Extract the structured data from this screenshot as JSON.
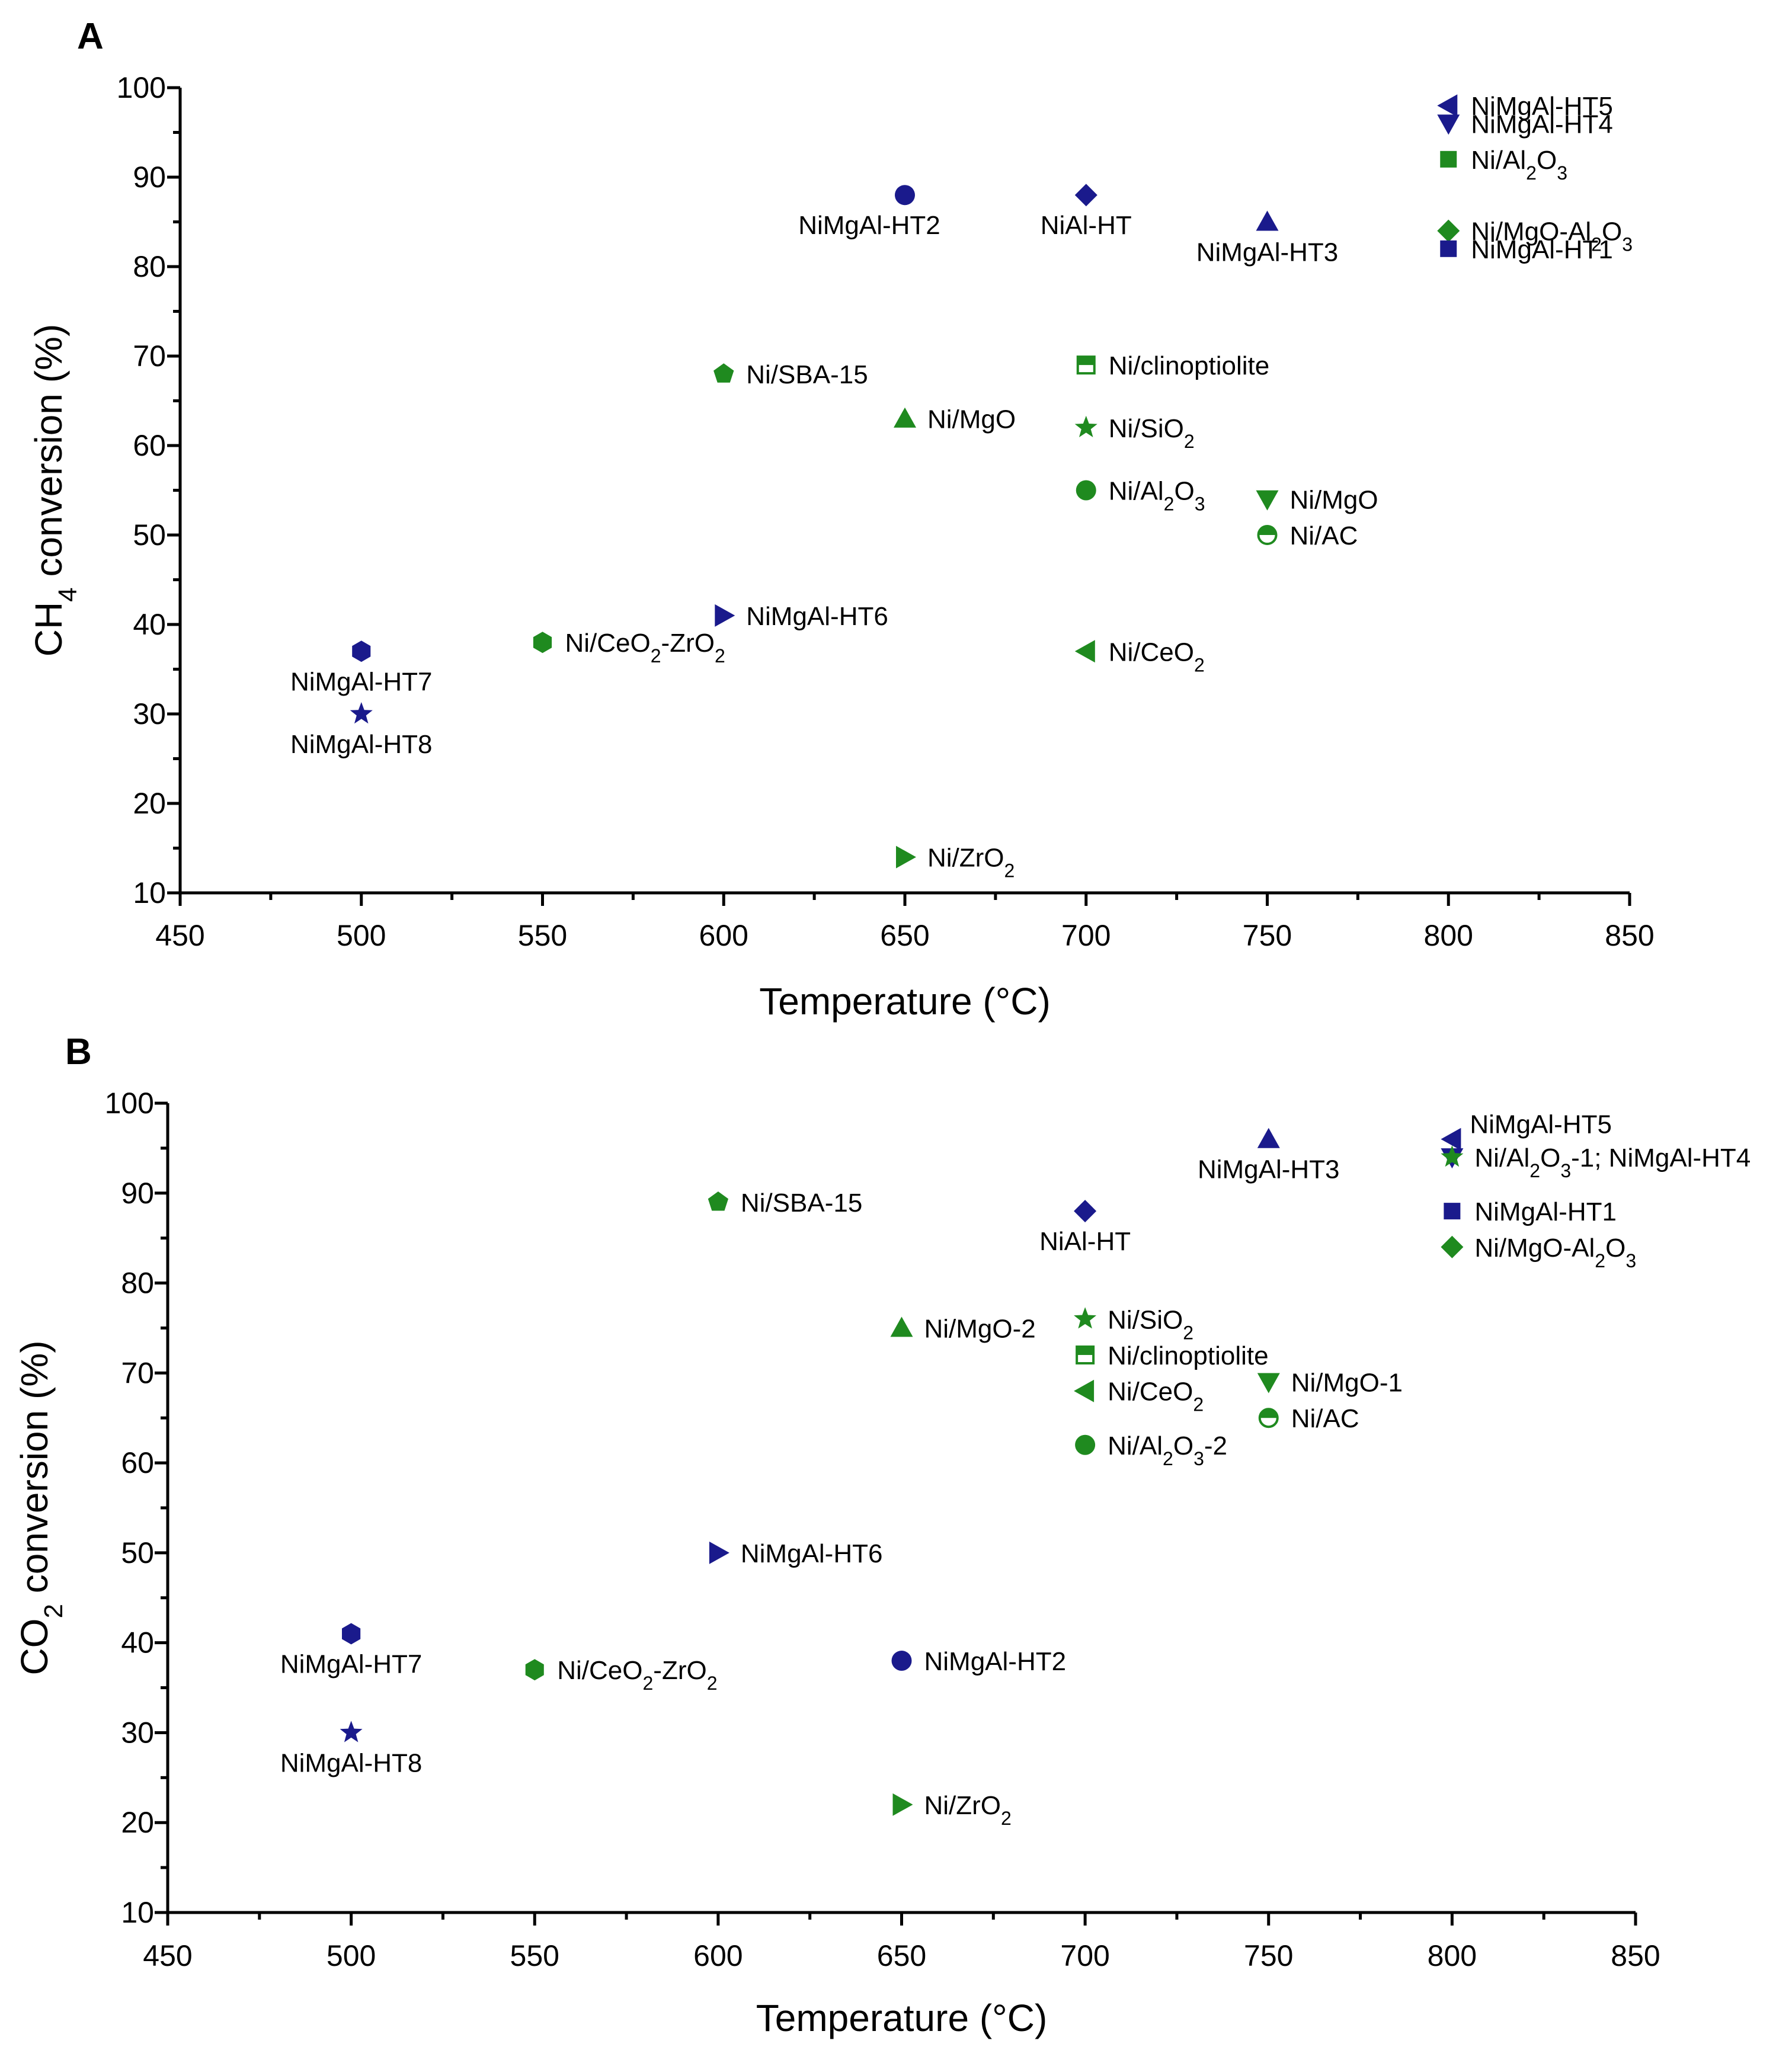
{
  "colors": {
    "blue": "#1a1a8c",
    "green": "#1f8a1f"
  },
  "chart_data": [
    {
      "type": "scatter",
      "panel_label": "A",
      "title": "",
      "xlabel": "Temperature (°C)",
      "ylabel_parts": [
        "CH",
        "4",
        " conversion (%)"
      ],
      "xlim": [
        450,
        850
      ],
      "ylim": [
        10,
        100
      ],
      "xticks": [
        450,
        500,
        550,
        600,
        650,
        700,
        750,
        800,
        850
      ],
      "yticks": [
        10,
        20,
        30,
        40,
        50,
        60,
        70,
        80,
        90,
        100
      ],
      "grid": false,
      "legend": "none (points labelled directly)",
      "points": [
        {
          "label": "NiMgAl-HT5",
          "x": 800,
          "y": 98,
          "marker": "triangle-left",
          "color": "blue",
          "label_pos": "right"
        },
        {
          "label": "NiMgAl-HT4",
          "x": 800,
          "y": 96,
          "marker": "triangle-down",
          "color": "blue",
          "label_pos": "right"
        },
        {
          "label": "Ni/Al2O3",
          "label_parts": [
            "Ni/Al",
            "_2",
            "O",
            "_3"
          ],
          "x": 800,
          "y": 92,
          "marker": "square",
          "color": "green",
          "label_pos": "right"
        },
        {
          "label": "Ni/MgO-Al2O3",
          "label_parts": [
            "Ni/MgO-Al",
            "_2",
            "O",
            "_3"
          ],
          "x": 800,
          "y": 84,
          "marker": "diamond",
          "color": "green",
          "label_pos": "right"
        },
        {
          "label": "NiMgAl-HT1",
          "x": 800,
          "y": 82,
          "marker": "square",
          "color": "blue",
          "label_pos": "right"
        },
        {
          "label": "NiMgAl-HT2",
          "x": 650,
          "y": 88,
          "marker": "circle",
          "color": "blue",
          "label_pos": "below-left"
        },
        {
          "label": "NiAl-HT",
          "x": 700,
          "y": 88,
          "marker": "diamond",
          "color": "blue",
          "label_pos": "below"
        },
        {
          "label": "NiMgAl-HT3",
          "x": 750,
          "y": 85,
          "marker": "triangle-up",
          "color": "blue",
          "label_pos": "below"
        },
        {
          "label": "Ni/clinoptiolite",
          "x": 700,
          "y": 69,
          "marker": "square-half",
          "color": "green",
          "label_pos": "right"
        },
        {
          "label": "Ni/SBA-15",
          "x": 600,
          "y": 68,
          "marker": "pentagon",
          "color": "green",
          "label_pos": "right"
        },
        {
          "label": "Ni/MgO",
          "x": 650,
          "y": 63,
          "marker": "triangle-up",
          "color": "green",
          "label_pos": "right"
        },
        {
          "label": "Ni/SiO2",
          "label_parts": [
            "Ni/SiO",
            "_2"
          ],
          "x": 700,
          "y": 62,
          "marker": "star",
          "color": "green",
          "label_pos": "right"
        },
        {
          "label": "Ni/Al2O3",
          "label_parts": [
            "Ni/Al",
            "_2",
            "O",
            "_3"
          ],
          "x": 700,
          "y": 55,
          "marker": "circle",
          "color": "green",
          "label_pos": "right"
        },
        {
          "label": "Ni/MgO",
          "x": 750,
          "y": 54,
          "marker": "triangle-down",
          "color": "green",
          "label_pos": "right"
        },
        {
          "label": "Ni/AC",
          "x": 750,
          "y": 50,
          "marker": "circle-half",
          "color": "green",
          "label_pos": "right"
        },
        {
          "label": "NiMgAl-HT6",
          "x": 600,
          "y": 41,
          "marker": "triangle-right",
          "color": "blue",
          "label_pos": "right"
        },
        {
          "label": "Ni/CeO2-ZrO2",
          "label_parts": [
            "Ni/CeO",
            "_2",
            "-ZrO",
            "_2"
          ],
          "x": 550,
          "y": 38,
          "marker": "hexagon",
          "color": "green",
          "label_pos": "right"
        },
        {
          "label": "NiMgAl-HT7",
          "x": 500,
          "y": 37,
          "marker": "hexagon",
          "color": "blue",
          "label_pos": "below"
        },
        {
          "label": "Ni/CeO2",
          "label_parts": [
            "Ni/CeO",
            "_2"
          ],
          "x": 700,
          "y": 37,
          "marker": "triangle-left",
          "color": "green",
          "label_pos": "right"
        },
        {
          "label": "NiMgAl-HT8",
          "x": 500,
          "y": 30,
          "marker": "star",
          "color": "blue",
          "label_pos": "below"
        },
        {
          "label": "Ni/ZrO2",
          "label_parts": [
            "Ni/ZrO",
            "_2"
          ],
          "x": 650,
          "y": 14,
          "marker": "triangle-right",
          "color": "green",
          "label_pos": "right"
        }
      ]
    },
    {
      "type": "scatter",
      "panel_label": "B",
      "title": "",
      "xlabel": "Temperature (°C)",
      "ylabel_parts": [
        "CO",
        "2",
        " conversion (%)"
      ],
      "xlim": [
        450,
        850
      ],
      "ylim": [
        10,
        100
      ],
      "xticks": [
        450,
        500,
        550,
        600,
        650,
        700,
        750,
        800,
        850
      ],
      "yticks": [
        10,
        20,
        30,
        40,
        50,
        60,
        70,
        80,
        90,
        100
      ],
      "grid": false,
      "legend": "none (points labelled directly)",
      "points": [
        {
          "label": "NiMgAl-HT5",
          "x": 800,
          "y": 96,
          "marker": "triangle-left",
          "color": "blue",
          "label_pos": "right-above"
        },
        {
          "label": "NiMgAl-HT4",
          "x": 800,
          "y": 94,
          "marker": "triangle-down",
          "color": "blue",
          "label_pos": "none"
        },
        {
          "label": "Ni/Al2O3-1; NiMgAl-HT4",
          "label_parts": [
            "Ni/Al",
            "_2",
            "O",
            "_3",
            "-1; NiMgAl-HT4"
          ],
          "x": 800,
          "y": 94,
          "marker": "star",
          "color": "green",
          "label_pos": "right"
        },
        {
          "label": "NiMgAl-HT1",
          "x": 800,
          "y": 88,
          "marker": "square",
          "color": "blue",
          "label_pos": "right"
        },
        {
          "label": "Ni/MgO-Al2O3",
          "label_parts": [
            "Ni/MgO-Al",
            "_2",
            "O",
            "_3"
          ],
          "x": 800,
          "y": 84,
          "marker": "diamond",
          "color": "green",
          "label_pos": "right"
        },
        {
          "label": "NiMgAl-HT3",
          "x": 750,
          "y": 96,
          "marker": "triangle-up",
          "color": "blue",
          "label_pos": "below"
        },
        {
          "label": "Ni/SBA-15",
          "x": 600,
          "y": 89,
          "marker": "pentagon",
          "color": "green",
          "label_pos": "right"
        },
        {
          "label": "NiAl-HT",
          "x": 700,
          "y": 88,
          "marker": "diamond",
          "color": "blue",
          "label_pos": "below"
        },
        {
          "label": "Ni/SiO2",
          "label_parts": [
            "Ni/SiO",
            "_2"
          ],
          "x": 700,
          "y": 76,
          "marker": "star",
          "color": "green",
          "label_pos": "right"
        },
        {
          "label": "Ni/MgO-2",
          "x": 650,
          "y": 75,
          "marker": "triangle-up",
          "color": "green",
          "label_pos": "right"
        },
        {
          "label": "Ni/clinoptiolite",
          "x": 700,
          "y": 72,
          "marker": "square-half",
          "color": "green",
          "label_pos": "right"
        },
        {
          "label": "Ni/MgO-1",
          "x": 750,
          "y": 69,
          "marker": "triangle-down",
          "color": "green",
          "label_pos": "right"
        },
        {
          "label": "Ni/CeO2",
          "label_parts": [
            "Ni/CeO",
            "_2"
          ],
          "x": 700,
          "y": 68,
          "marker": "triangle-left",
          "color": "green",
          "label_pos": "right"
        },
        {
          "label": "Ni/AC",
          "x": 750,
          "y": 65,
          "marker": "circle-half",
          "color": "green",
          "label_pos": "right"
        },
        {
          "label": "Ni/Al2O3-2",
          "label_parts": [
            "Ni/Al",
            "_2",
            "O",
            "_3",
            "-2"
          ],
          "x": 700,
          "y": 62,
          "marker": "circle",
          "color": "green",
          "label_pos": "right"
        },
        {
          "label": "NiMgAl-HT6",
          "x": 600,
          "y": 50,
          "marker": "triangle-right",
          "color": "blue",
          "label_pos": "right"
        },
        {
          "label": "NiMgAl-HT7",
          "x": 500,
          "y": 41,
          "marker": "hexagon",
          "color": "blue",
          "label_pos": "below"
        },
        {
          "label": "NiMgAl-HT2",
          "x": 650,
          "y": 38,
          "marker": "circle",
          "color": "blue",
          "label_pos": "right"
        },
        {
          "label": "Ni/CeO2-ZrO2",
          "label_parts": [
            "Ni/CeO",
            "_2",
            "-ZrO",
            "_2"
          ],
          "x": 550,
          "y": 37,
          "marker": "hexagon",
          "color": "green",
          "label_pos": "right"
        },
        {
          "label": "NiMgAl-HT8",
          "x": 500,
          "y": 30,
          "marker": "star",
          "color": "blue",
          "label_pos": "below"
        },
        {
          "label": "Ni/ZrO2",
          "label_parts": [
            "Ni/ZrO",
            "_2"
          ],
          "x": 650,
          "y": 22,
          "marker": "triangle-right",
          "color": "green",
          "label_pos": "right"
        }
      ]
    }
  ]
}
